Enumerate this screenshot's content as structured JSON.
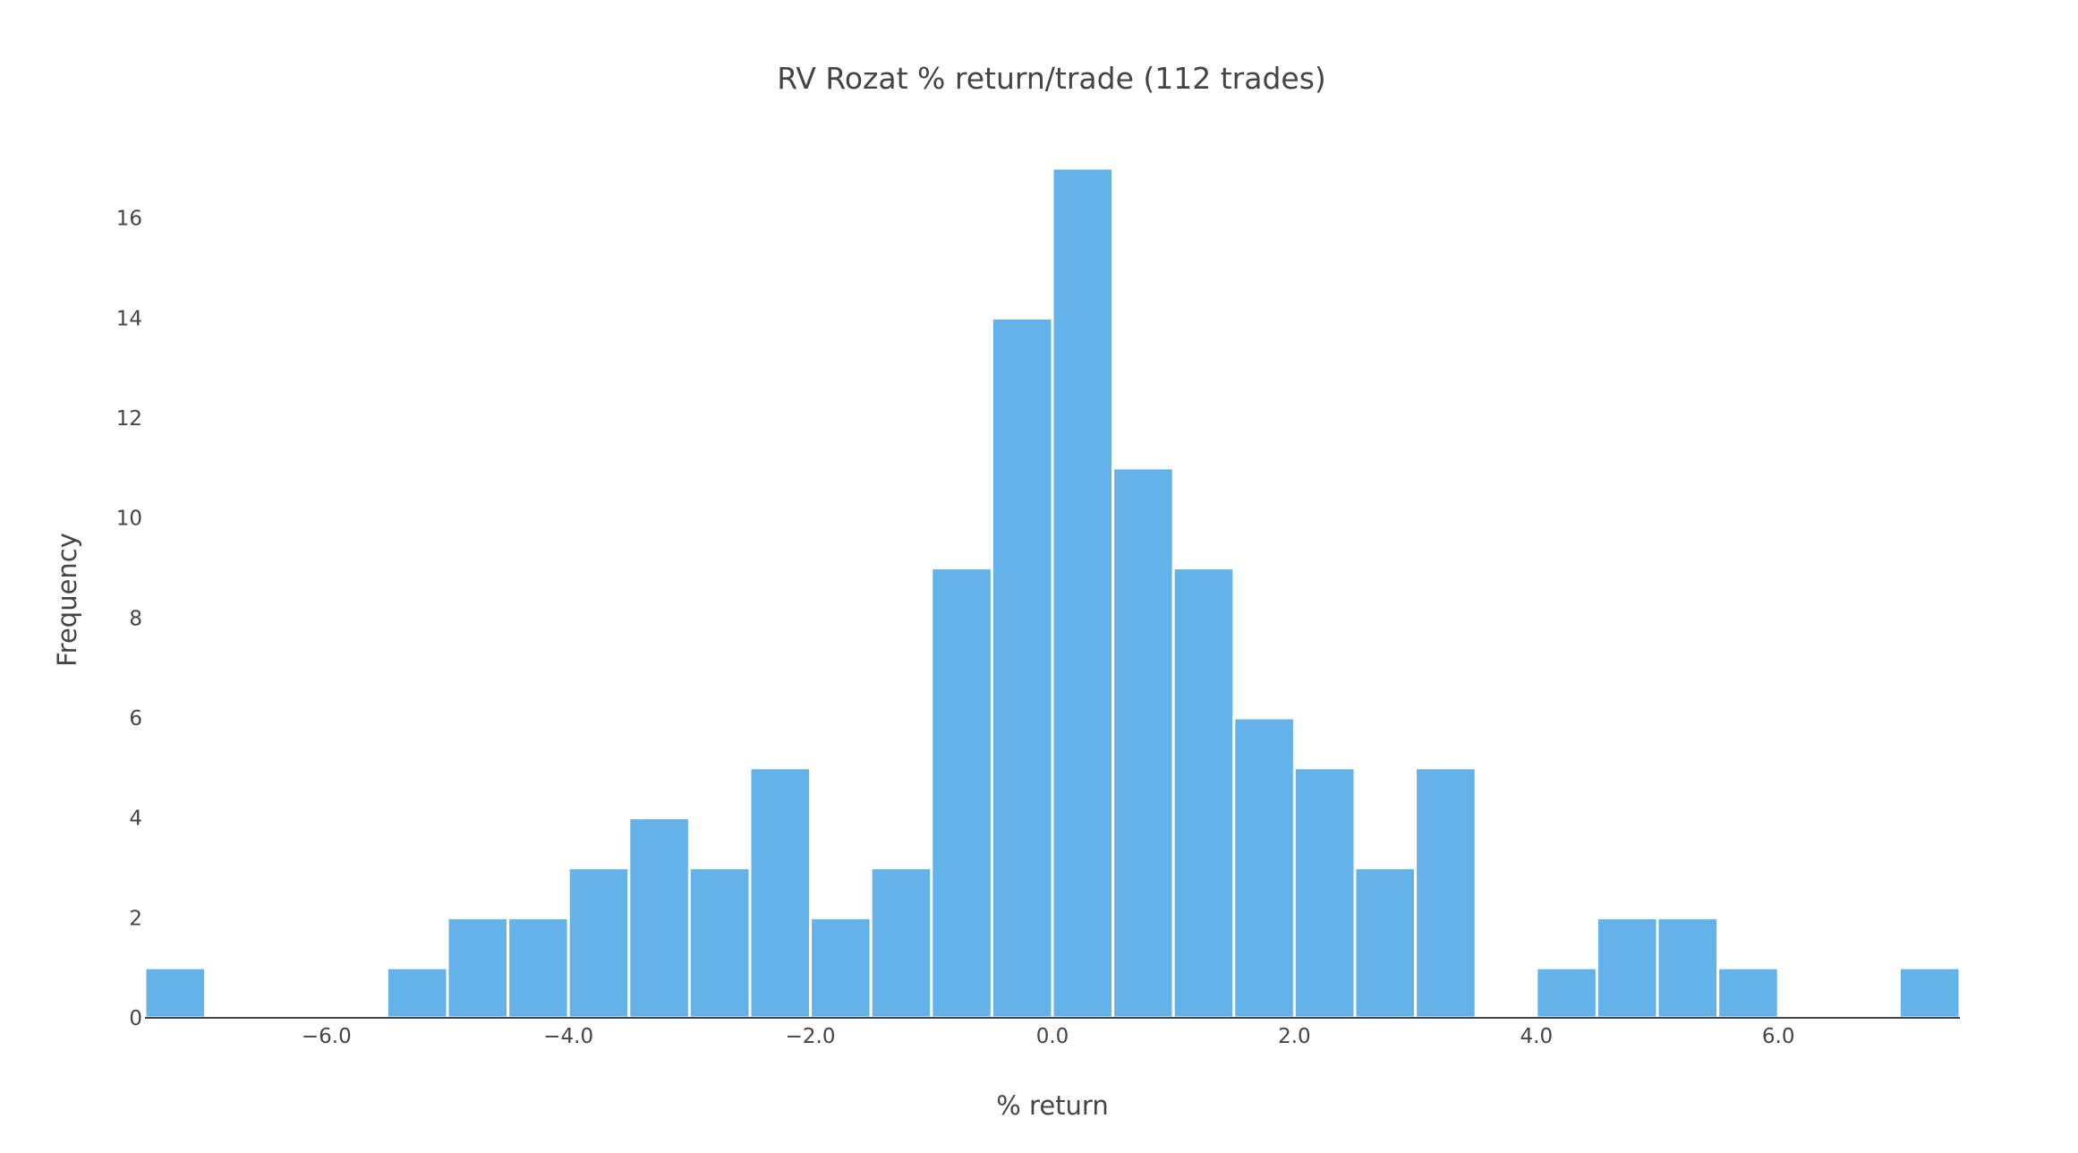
{
  "chart_data": {
    "type": "bar",
    "title": "RV Rozat % return/trade (112 trades)",
    "xlabel": "% return",
    "ylabel": "Frequency",
    "bin_width": 0.5,
    "bin_start": -7.5,
    "xlim": [
      -7.5,
      7.5
    ],
    "ylim": [
      0,
      17.5
    ],
    "x_ticks": [
      -6,
      -4,
      -2,
      0,
      2,
      4,
      6
    ],
    "x_tick_labels": [
      "−6.0",
      "−4.0",
      "−2.0",
      "0.0",
      "2.0",
      "4.0",
      "6.0"
    ],
    "y_ticks": [
      0,
      2,
      4,
      6,
      8,
      10,
      12,
      14,
      16
    ],
    "y_tick_labels": [
      "0",
      "2",
      "4",
      "6",
      "8",
      "10",
      "12",
      "14",
      "16"
    ],
    "values": [
      1,
      0,
      0,
      0,
      1,
      2,
      2,
      3,
      4,
      3,
      5,
      2,
      3,
      9,
      14,
      17,
      11,
      9,
      6,
      5,
      3,
      5,
      0,
      1,
      2,
      2,
      1,
      0,
      0,
      1
    ],
    "bar_color": "#63b3ea",
    "bar_edge_color": "#ffffff",
    "axis_color": "#444444",
    "grid": false,
    "legend": "none"
  }
}
